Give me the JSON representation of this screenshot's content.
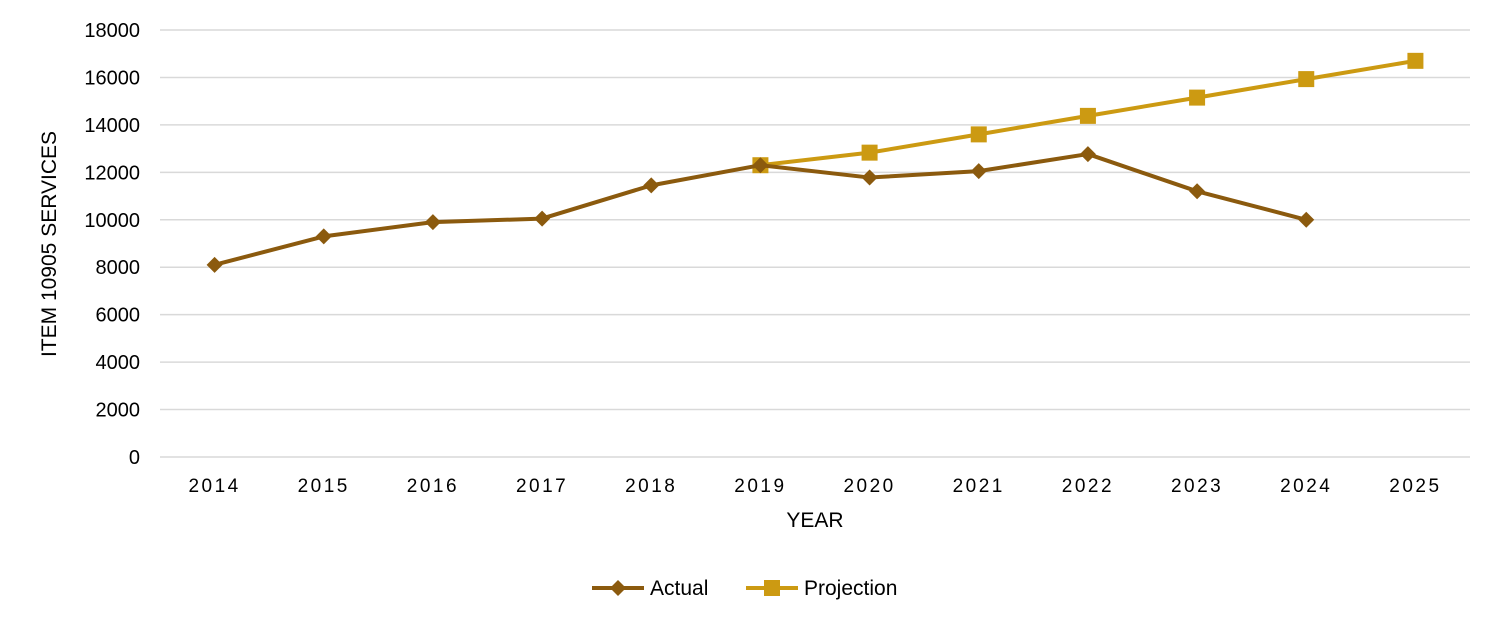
{
  "chart_data": {
    "type": "line",
    "xlabel": "YEAR",
    "ylabel": "ITEM 10905 SERVICES",
    "categories": [
      "2014",
      "2015",
      "2016",
      "2017",
      "2018",
      "2019",
      "2020",
      "2021",
      "2022",
      "2023",
      "2024",
      "2025"
    ],
    "ylim": [
      0,
      18000
    ],
    "yticks": [
      0,
      2000,
      4000,
      6000,
      8000,
      10000,
      12000,
      14000,
      16000,
      18000
    ],
    "grid": true,
    "legend_position": "bottom",
    "series": [
      {
        "name": "Actual",
        "color": "#8B5A0E",
        "marker": "diamond",
        "values": [
          8100,
          9300,
          9900,
          10050,
          11450,
          12300,
          11780,
          12050,
          12770,
          11200,
          10000,
          null
        ]
      },
      {
        "name": "Projection",
        "color": "#CC9A12",
        "marker": "square",
        "values": [
          null,
          null,
          null,
          null,
          null,
          12300,
          12830,
          13600,
          14380,
          15150,
          15930,
          16700
        ]
      }
    ]
  }
}
